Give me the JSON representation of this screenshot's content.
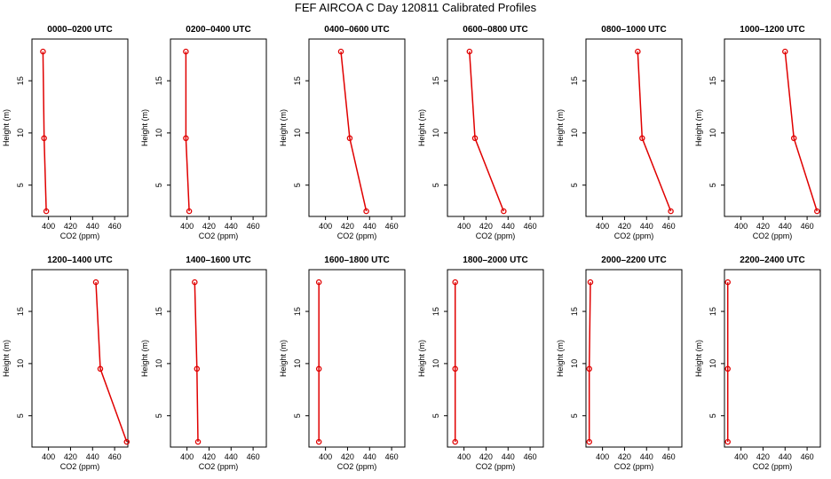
{
  "title": "FEF AIRCOA C  Day 120811  Calibrated Profiles",
  "colors": {
    "profile": "#e00000",
    "axis": "#000000",
    "background": "#ffffff"
  },
  "chart_data": [
    {
      "type": "line",
      "title": "0000–0200 UTC",
      "xlabel": "CO2 (ppm)",
      "ylabel": "Height (m)",
      "xlim": [
        385,
        472
      ],
      "ylim": [
        2,
        19
      ],
      "xticks": [
        400,
        420,
        440,
        460
      ],
      "yticks": [
        5,
        10,
        15
      ],
      "grid": false,
      "series": [
        {
          "x": [
            398,
            396,
            395
          ],
          "y": [
            2.5,
            9.5,
            17.8
          ]
        }
      ]
    },
    {
      "type": "line",
      "title": "0200–0400 UTC",
      "xlabel": "CO2 (ppm)",
      "ylabel": "Height (m)",
      "xlim": [
        385,
        472
      ],
      "ylim": [
        2,
        19
      ],
      "xticks": [
        400,
        420,
        440,
        460
      ],
      "yticks": [
        5,
        10,
        15
      ],
      "grid": false,
      "series": [
        {
          "x": [
            402,
            399,
            399
          ],
          "y": [
            2.5,
            9.5,
            17.8
          ]
        }
      ]
    },
    {
      "type": "line",
      "title": "0400–0600 UTC",
      "xlabel": "CO2 (ppm)",
      "ylabel": "Height (m)",
      "xlim": [
        385,
        472
      ],
      "ylim": [
        2,
        19
      ],
      "xticks": [
        400,
        420,
        440,
        460
      ],
      "yticks": [
        5,
        10,
        15
      ],
      "grid": false,
      "series": [
        {
          "x": [
            437,
            422,
            414
          ],
          "y": [
            2.5,
            9.5,
            17.8
          ]
        }
      ]
    },
    {
      "type": "line",
      "title": "0600–0800 UTC",
      "xlabel": "CO2 (ppm)",
      "ylabel": "Height (m)",
      "xlim": [
        385,
        472
      ],
      "ylim": [
        2,
        19
      ],
      "xticks": [
        400,
        420,
        440,
        460
      ],
      "yticks": [
        5,
        10,
        15
      ],
      "grid": false,
      "series": [
        {
          "x": [
            436,
            410,
            405
          ],
          "y": [
            2.5,
            9.5,
            17.8
          ]
        }
      ]
    },
    {
      "type": "line",
      "title": "0800–1000 UTC",
      "xlabel": "CO2 (ppm)",
      "ylabel": "Height (m)",
      "xlim": [
        385,
        472
      ],
      "ylim": [
        2,
        19
      ],
      "xticks": [
        400,
        420,
        440,
        460
      ],
      "yticks": [
        5,
        10,
        15
      ],
      "grid": false,
      "series": [
        {
          "x": [
            462,
            436,
            432
          ],
          "y": [
            2.5,
            9.5,
            17.8
          ]
        }
      ]
    },
    {
      "type": "line",
      "title": "1000–1200 UTC",
      "xlabel": "CO2 (ppm)",
      "ylabel": "Height (m)",
      "xlim": [
        385,
        472
      ],
      "ylim": [
        2,
        19
      ],
      "xticks": [
        400,
        420,
        440,
        460
      ],
      "yticks": [
        5,
        10,
        15
      ],
      "grid": false,
      "series": [
        {
          "x": [
            469,
            448,
            440
          ],
          "y": [
            2.5,
            9.5,
            17.8
          ]
        }
      ]
    },
    {
      "type": "line",
      "title": "1200–1400 UTC",
      "xlabel": "CO2 (ppm)",
      "ylabel": "Height (m)",
      "xlim": [
        385,
        472
      ],
      "ylim": [
        2,
        19
      ],
      "xticks": [
        400,
        420,
        440,
        460
      ],
      "yticks": [
        5,
        10,
        15
      ],
      "grid": false,
      "series": [
        {
          "x": [
            471,
            447,
            443
          ],
          "y": [
            2.5,
            9.5,
            17.8
          ]
        }
      ]
    },
    {
      "type": "line",
      "title": "1400–1600 UTC",
      "xlabel": "CO2 (ppm)",
      "ylabel": "Height (m)",
      "xlim": [
        385,
        472
      ],
      "ylim": [
        2,
        19
      ],
      "xticks": [
        400,
        420,
        440,
        460
      ],
      "yticks": [
        5,
        10,
        15
      ],
      "grid": false,
      "series": [
        {
          "x": [
            410,
            409,
            407
          ],
          "y": [
            2.5,
            9.5,
            17.8
          ]
        }
      ]
    },
    {
      "type": "line",
      "title": "1600–1800 UTC",
      "xlabel": "CO2 (ppm)",
      "ylabel": "Height (m)",
      "xlim": [
        385,
        472
      ],
      "ylim": [
        2,
        19
      ],
      "xticks": [
        400,
        420,
        440,
        460
      ],
      "yticks": [
        5,
        10,
        15
      ],
      "grid": false,
      "series": [
        {
          "x": [
            394,
            394,
            394
          ],
          "y": [
            2.5,
            9.5,
            17.8
          ]
        }
      ]
    },
    {
      "type": "line",
      "title": "1800–2000 UTC",
      "xlabel": "CO2 (ppm)",
      "ylabel": "Height (m)",
      "xlim": [
        385,
        472
      ],
      "ylim": [
        2,
        19
      ],
      "xticks": [
        400,
        420,
        440,
        460
      ],
      "yticks": [
        5,
        10,
        15
      ],
      "grid": false,
      "series": [
        {
          "x": [
            392,
            392,
            392
          ],
          "y": [
            2.5,
            9.5,
            17.8
          ]
        }
      ]
    },
    {
      "type": "line",
      "title": "2000–2200 UTC",
      "xlabel": "CO2 (ppm)",
      "ylabel": "Height (m)",
      "xlim": [
        385,
        472
      ],
      "ylim": [
        2,
        19
      ],
      "xticks": [
        400,
        420,
        440,
        460
      ],
      "yticks": [
        5,
        10,
        15
      ],
      "grid": false,
      "series": [
        {
          "x": [
            388,
            388,
            389
          ],
          "y": [
            2.5,
            9.5,
            17.8
          ]
        }
      ]
    },
    {
      "type": "line",
      "title": "2200–2400 UTC",
      "xlabel": "CO2 (ppm)",
      "ylabel": "Height (m)",
      "xlim": [
        385,
        472
      ],
      "ylim": [
        2,
        19
      ],
      "xticks": [
        400,
        420,
        440,
        460
      ],
      "yticks": [
        5,
        10,
        15
      ],
      "grid": false,
      "series": [
        {
          "x": [
            388,
            388,
            388
          ],
          "y": [
            2.5,
            9.5,
            17.8
          ]
        }
      ]
    }
  ]
}
